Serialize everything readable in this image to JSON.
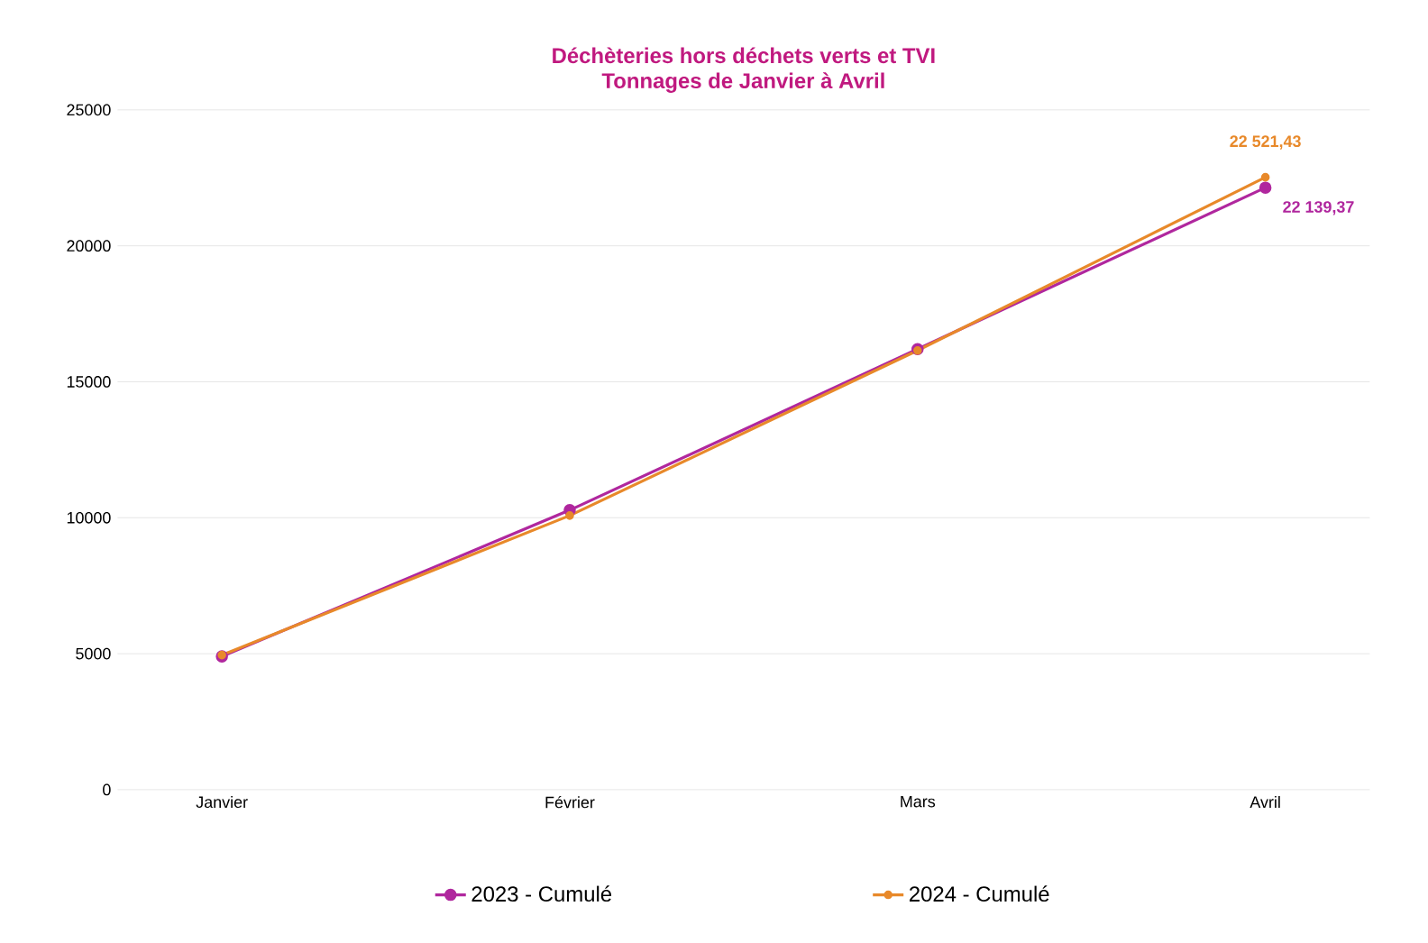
{
  "chart_data": {
    "type": "line",
    "title": "Déchèteries hors déchets verts et TVI",
    "subtitle": "Tonnages de Janvier à Avril",
    "categories": [
      "Janvier",
      "Février",
      "Mars",
      "Avril"
    ],
    "series": [
      {
        "name": "2023 - Cumulé",
        "color": "#b0279e",
        "values": [
          4900,
          10280,
          16200,
          22139.37
        ],
        "value_labels": [
          null,
          null,
          null,
          "22 139,37"
        ]
      },
      {
        "name": "2024 - Cumulé",
        "color": "#e8892a",
        "values": [
          4950,
          10080,
          16150,
          22521.43
        ],
        "value_labels": [
          null,
          null,
          null,
          "22 521,43"
        ]
      }
    ],
    "ylim": [
      0,
      25000
    ],
    "yticks": [
      0,
      5000,
      10000,
      15000,
      20000,
      25000
    ],
    "grid": "y",
    "legend": "bottom",
    "marker": "circle",
    "line_style": "solid"
  }
}
